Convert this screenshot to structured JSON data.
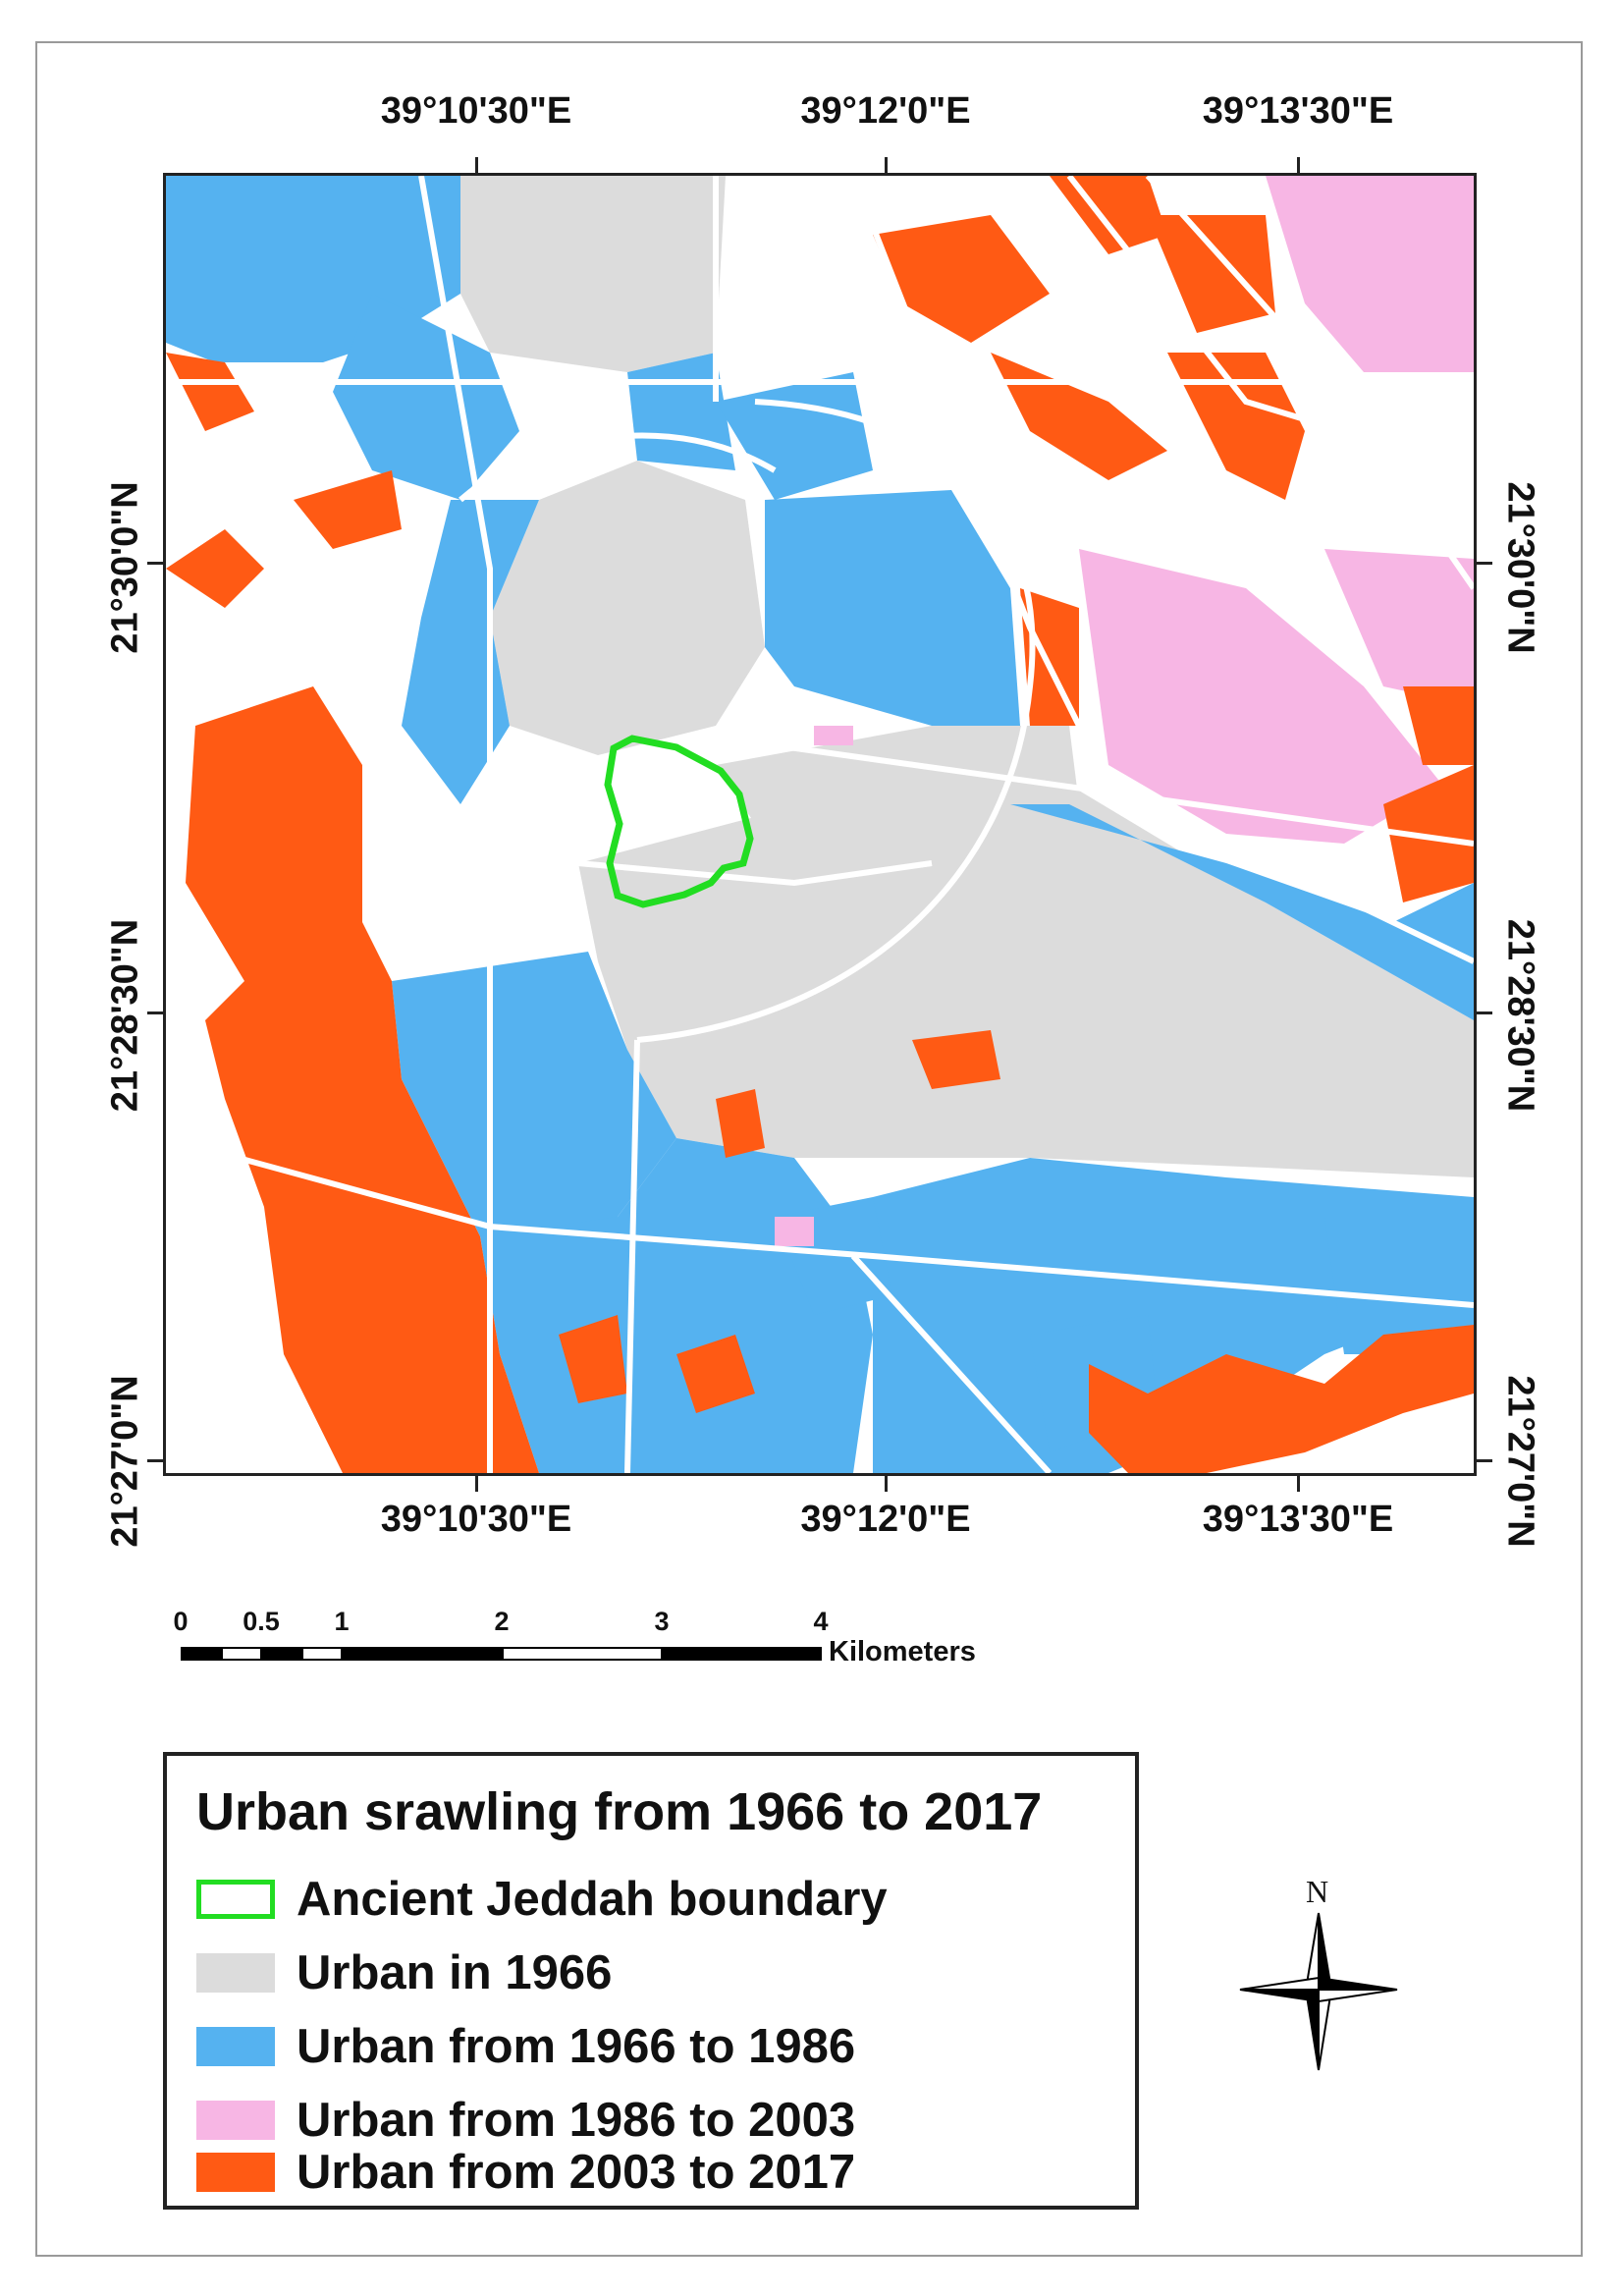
{
  "map": {
    "coords": {
      "top": [
        "39°10'30\"E",
        "39°12'0\"E",
        "39°13'30\"E"
      ],
      "bottom": [
        "39°10'30\"E",
        "39°12'0\"E",
        "39°13'30\"E"
      ],
      "left": [
        "21°30'0\"N",
        "21°28'30\"N",
        "21°27'0\"N"
      ],
      "right": [
        "21°30'0\"N",
        "21°28'30\"N",
        "21°27'0\"N"
      ]
    },
    "colors": {
      "boundary": "#22dd22",
      "urban_1966": "#dcdcdc",
      "urban_1966_1986": "#55b2f0",
      "urban_1986_2003": "#f7b6e4",
      "urban_2003_2017": "#ff5a14",
      "road": "#ffffff"
    }
  },
  "scalebar": {
    "labels": [
      "0",
      "0.5",
      "1",
      "2",
      "3",
      "4"
    ],
    "unit": "Kilometers"
  },
  "legend": {
    "title": "Urban srawling from 1966 to 2017",
    "items": [
      {
        "label": "Ancient Jeddah boundary",
        "color": "#22dd22",
        "style": "outline"
      },
      {
        "label": "Urban in 1966",
        "color": "#dcdcdc",
        "style": "fill"
      },
      {
        "label": "Urban from 1966 to 1986",
        "color": "#55b2f0",
        "style": "fill"
      },
      {
        "label": "Urban from 1986 to 2003",
        "color": "#f7b6e4",
        "style": "fill"
      },
      {
        "label": "Urban from 2003 to 2017",
        "color": "#ff5a14",
        "style": "fill"
      }
    ]
  },
  "north_arrow": {
    "label": "N",
    "icon": "compass-rose-icon"
  }
}
